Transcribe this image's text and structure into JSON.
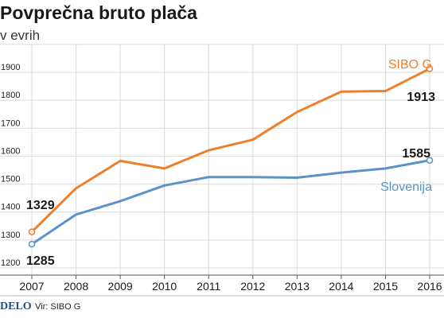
{
  "header": {
    "title": "Povprečna bruto plača",
    "subtitle": "v evrih"
  },
  "footer": {
    "brand": "DELO",
    "source": "Vir: SIBO G"
  },
  "chart_data": {
    "type": "line",
    "title": "Povprečna bruto plača",
    "subtitle": "v evrih",
    "x": [
      "2007",
      "2008",
      "2009",
      "2010",
      "2011",
      "2012",
      "2013",
      "2014",
      "2015",
      "2016"
    ],
    "ylim": [
      1200,
      2000
    ],
    "yticks": [
      "1200",
      "1300",
      "1400",
      "1500",
      "1600",
      "1700",
      "1800",
      "1900"
    ],
    "grid": true,
    "series": [
      {
        "name": "SIBO G",
        "color": "#ee7f2d",
        "values": [
          1329,
          1485,
          1583,
          1556,
          1621,
          1659,
          1758,
          1831,
          1833,
          1913
        ],
        "start_label": "1329",
        "end_label": "1913"
      },
      {
        "name": "Slovenija",
        "color": "#5b93c8",
        "values": [
          1285,
          1391,
          1439,
          1495,
          1525,
          1525,
          1523,
          1541,
          1556,
          1585
        ],
        "start_label": "1285",
        "end_label": "1585"
      }
    ]
  }
}
